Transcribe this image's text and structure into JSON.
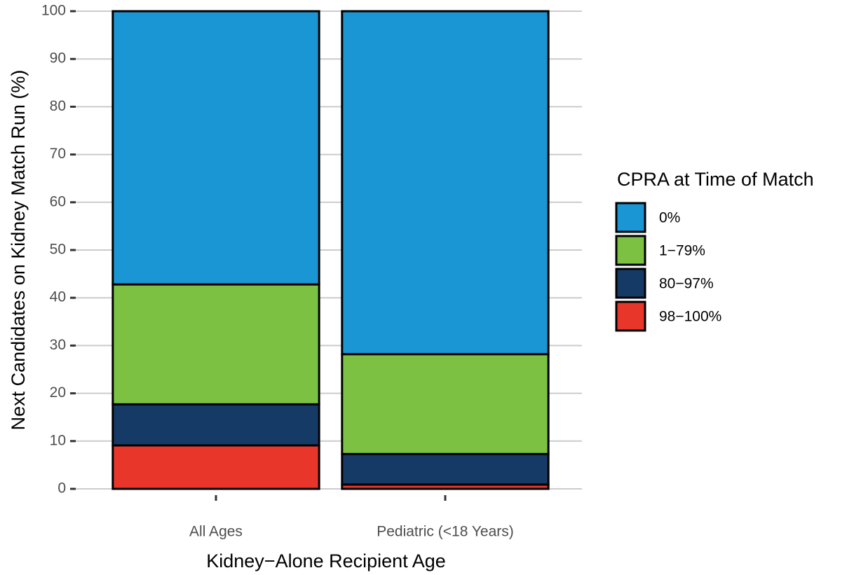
{
  "chart_data": {
    "type": "stacked_bar",
    "categories": [
      "All Ages",
      "Pediatric (<18 Years)"
    ],
    "xlabel": "Kidney−Alone Recipient Age",
    "ylabel": "Next Candidates on Kidney Match Run (%)",
    "legend_title": "CPRA at Time of Match",
    "legend": "right",
    "grid": true,
    "ylim": [
      0,
      100
    ],
    "yticks": [
      0,
      10,
      20,
      30,
      40,
      50,
      60,
      70,
      80,
      90,
      100
    ],
    "series": [
      {
        "name": "0%",
        "color": "#1b96d4",
        "values": [
          57.2,
          71.8
        ]
      },
      {
        "name": "1−79%",
        "color": "#7cc142",
        "values": [
          25.1,
          20.9
        ]
      },
      {
        "name": "80−97%",
        "color": "#163a66",
        "values": [
          8.6,
          6.4
        ]
      },
      {
        "name": "98−100%",
        "color": "#e8362a",
        "values": [
          9.1,
          0.9
        ]
      }
    ]
  }
}
